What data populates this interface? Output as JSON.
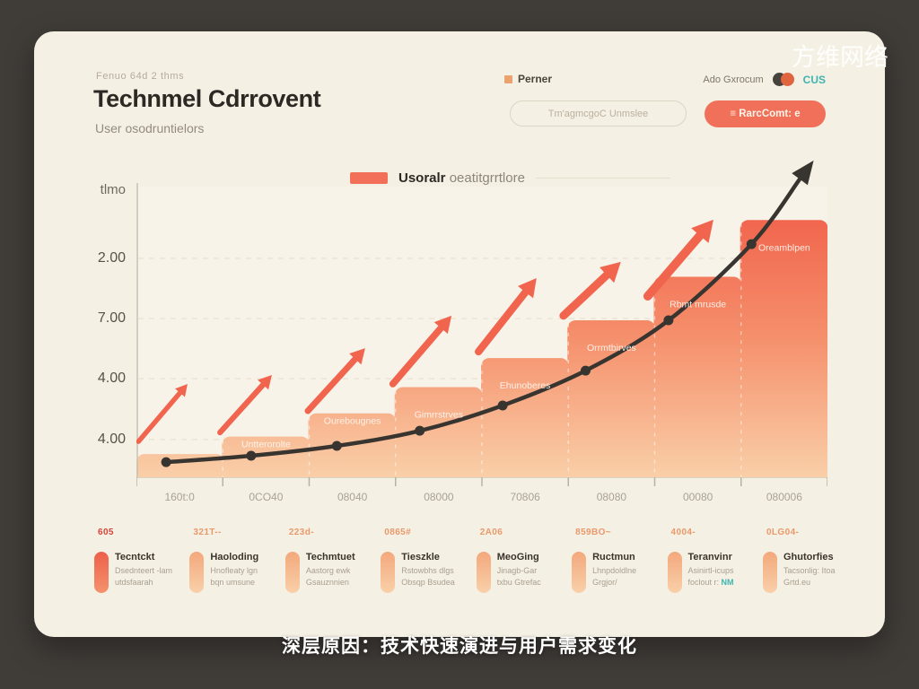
{
  "watermark": "方维网络",
  "caption": "深层原因：技术快速演进与用户需求变化",
  "header": {
    "eyebrow": "Fenuo 64d 2 thms",
    "title": "Technmel Cdrrovent",
    "subtitle": "User osodruntielors",
    "partner_label": "Perner",
    "account_label": "Ado Gxrocum",
    "account_badge": "CUS",
    "search_placeholder": "Tm'agmcgoC Unmslee",
    "cta_label": "≡ RarcComt: e"
  },
  "chart_data": {
    "type": "area",
    "title": "Technmel Cdrrovent",
    "legend_bold": "Usoralr",
    "legend_rest": " oeatitgrrtlore",
    "y_axis_title": "tlmo",
    "y_tick_labels": [
      "2.00",
      "7.00",
      "4.00",
      "4.00"
    ],
    "y_tick_pct": [
      75.3,
      54.6,
      33.9,
      13.0
    ],
    "x_tick_labels": [
      "160t:0",
      "0CO40",
      "08040",
      "08000",
      "70806",
      "08080",
      "00080",
      "080006"
    ],
    "step_values_pct": [
      8,
      14,
      22,
      31,
      41,
      54,
      69,
      88.5
    ],
    "step_labels": [
      "",
      "Untterorolte",
      "Ourebougnes",
      "Gimrrstrves",
      "Ehunoberes",
      "Orrmtbirves",
      "Rbmt mrusde",
      "Oreamblpen"
    ],
    "curve_points_pct": [
      [
        4.3,
        5.2
      ],
      [
        16.6,
        7.4
      ],
      [
        29,
        10.8
      ],
      [
        41,
        16
      ],
      [
        53,
        24.7
      ],
      [
        65,
        36.7
      ],
      [
        77,
        54
      ],
      [
        89,
        80.2
      ]
    ],
    "curve_end_pct": [
      98,
      109
    ],
    "arrows_pct": [
      [
        0.3,
        12.3,
        7.4,
        32.1
      ],
      [
        12.1,
        15.4,
        19.6,
        35.2
      ],
      [
        24.8,
        22.8,
        33.1,
        44.4
      ],
      [
        37.1,
        32.1,
        45.6,
        55.6
      ],
      [
        49.5,
        43.2,
        57.9,
        68.5
      ],
      [
        61.8,
        55.6,
        70.1,
        74.1
      ],
      [
        74.0,
        62.3,
        83.5,
        88.6
      ]
    ],
    "colors": {
      "area_top": "#f1664e",
      "area_mid": "#f58f6b",
      "area_bottom": "#f9cfa8",
      "curve": "#383430",
      "arrow": "#f1654f",
      "plot_bg": "#f7f3e9",
      "grid": "#e4ddcb",
      "axis": "#c8c2b2",
      "tick": "#b9b2a2",
      "x_label": "#a9a294",
      "step_label": "rgba(255,247,240,0.92)"
    }
  },
  "stats": {
    "badges": [
      "605",
      "321T--",
      "223d-",
      "0865#",
      "2A06",
      "859BO~",
      "4004-",
      "0LG04-"
    ],
    "badge_colors": [
      "#d6453a",
      "#e9996b",
      "#e9996b",
      "#e9996b",
      "#e9996b",
      "#e9996b",
      "#e9996b",
      "#e9996b"
    ],
    "cards": [
      {
        "title": "Tecntckt",
        "line1": "Dsednteert -lam",
        "line2": "utdsfaarah",
        "hot": true
      },
      {
        "title": "Haoloding",
        "line1": "Hnofleaty lgn",
        "line2": "bqn umsune"
      },
      {
        "title": "Techmtuet",
        "line1": "Aastorg ewk",
        "line2": "Gsauznnien"
      },
      {
        "title": "Tieszkle",
        "line1": "Rstowbhs dlgs",
        "line2": "Obsqp Bsudea"
      },
      {
        "title": "MeoGing",
        "line1": "Jinagb-Gar",
        "line2": "txbu Gtrefac"
      },
      {
        "title": "Ructmun",
        "line1": "Lhnpdoldlne",
        "line2": "Grgjor/"
      },
      {
        "title": "Teranvinr",
        "line1": "Asinirtl-icups",
        "line2": "foclout r: ",
        "line2_badge": "NM"
      },
      {
        "title": "Ghutorfies",
        "line1": "Tacsonlig: Itoa",
        "line2": "Grtd.eu"
      }
    ]
  }
}
